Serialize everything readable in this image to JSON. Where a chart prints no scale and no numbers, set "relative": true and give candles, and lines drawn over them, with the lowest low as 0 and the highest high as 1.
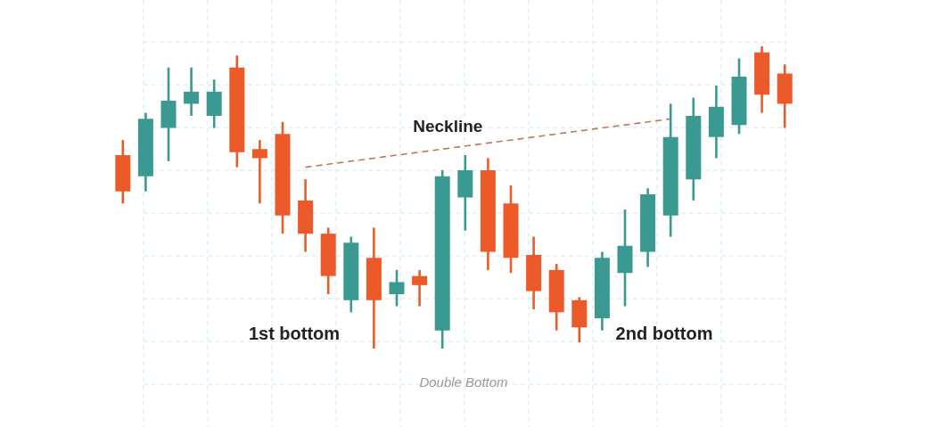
{
  "chart_data": {
    "type": "candlestick",
    "relative": true,
    "categories": [
      null,
      null,
      null,
      null,
      null,
      null,
      null,
      null,
      null,
      null,
      null,
      null,
      null,
      null,
      null,
      null,
      null,
      null,
      null,
      null,
      null,
      null,
      null,
      null,
      null,
      null,
      null,
      null,
      null,
      null
    ],
    "ohlc": [
      [
        0.64,
        0.69,
        0.48,
        0.52
      ],
      [
        0.57,
        0.78,
        0.52,
        0.76
      ],
      [
        0.73,
        0.93,
        0.62,
        0.82
      ],
      [
        0.81,
        0.93,
        0.77,
        0.85
      ],
      [
        0.77,
        0.89,
        0.73,
        0.85
      ],
      [
        0.93,
        0.97,
        0.6,
        0.65
      ],
      [
        0.66,
        0.69,
        0.48,
        0.63
      ],
      [
        0.71,
        0.75,
        0.38,
        0.44
      ],
      [
        0.49,
        0.56,
        0.32,
        0.38
      ],
      [
        0.38,
        0.4,
        0.18,
        0.24
      ],
      [
        0.16,
        0.37,
        0.12,
        0.35
      ],
      [
        0.3,
        0.4,
        0.0,
        0.16
      ],
      [
        0.18,
        0.26,
        0.14,
        0.22
      ],
      [
        0.24,
        0.26,
        0.14,
        0.21
      ],
      [
        0.06,
        0.59,
        0.0,
        0.57
      ],
      [
        0.5,
        0.64,
        0.39,
        0.59
      ],
      [
        0.59,
        0.63,
        0.26,
        0.32
      ],
      [
        0.48,
        0.54,
        0.25,
        0.3
      ],
      [
        0.31,
        0.37,
        0.13,
        0.19
      ],
      [
        0.26,
        0.28,
        0.06,
        0.12
      ],
      [
        0.16,
        0.17,
        0.02,
        0.07
      ],
      [
        0.1,
        0.32,
        0.06,
        0.3
      ],
      [
        0.25,
        0.46,
        0.14,
        0.34
      ],
      [
        0.32,
        0.53,
        0.27,
        0.51
      ],
      [
        0.44,
        0.81,
        0.37,
        0.7
      ],
      [
        0.56,
        0.83,
        0.49,
        0.77
      ],
      [
        0.7,
        0.87,
        0.63,
        0.8
      ],
      [
        0.74,
        0.96,
        0.71,
        0.9
      ],
      [
        0.98,
        1.0,
        0.78,
        0.84
      ],
      [
        0.91,
        0.94,
        0.73,
        0.81
      ]
    ],
    "colors": [
      "#ec5a2a",
      "#3a9a92",
      "#3a9a92",
      "#3a9a92",
      "#3a9a92",
      "#ec5a2a",
      "#ec5a2a",
      "#ec5a2a",
      "#ec5a2a",
      "#ec5a2a",
      "#3a9a92",
      "#ec5a2a",
      "#3a9a92",
      "#ec5a2a",
      "#3a9a92",
      "#3a9a92",
      "#ec5a2a",
      "#ec5a2a",
      "#ec5a2a",
      "#ec5a2a",
      "#ec5a2a",
      "#3a9a92",
      "#3a9a92",
      "#3a9a92",
      "#3a9a92",
      "#3a9a92",
      "#3a9a92",
      "#3a9a92",
      "#ec5a2a",
      "#ec5a2a"
    ],
    "series": [
      {
        "name": "Neckline",
        "type": "line",
        "color": "#c0765a",
        "line_style": "dashed",
        "values": [
          null,
          null,
          null,
          null,
          null,
          null,
          null,
          null,
          0.6,
          null,
          null,
          null,
          null,
          null,
          null,
          null,
          null,
          null,
          null,
          null,
          null,
          null,
          null,
          null,
          0.76,
          null,
          null,
          null,
          null,
          null
        ]
      }
    ],
    "annotations": [
      "1st bottom",
      "2nd bottom",
      "Double Bottom"
    ],
    "grid": true,
    "tick_labels": false
  }
}
